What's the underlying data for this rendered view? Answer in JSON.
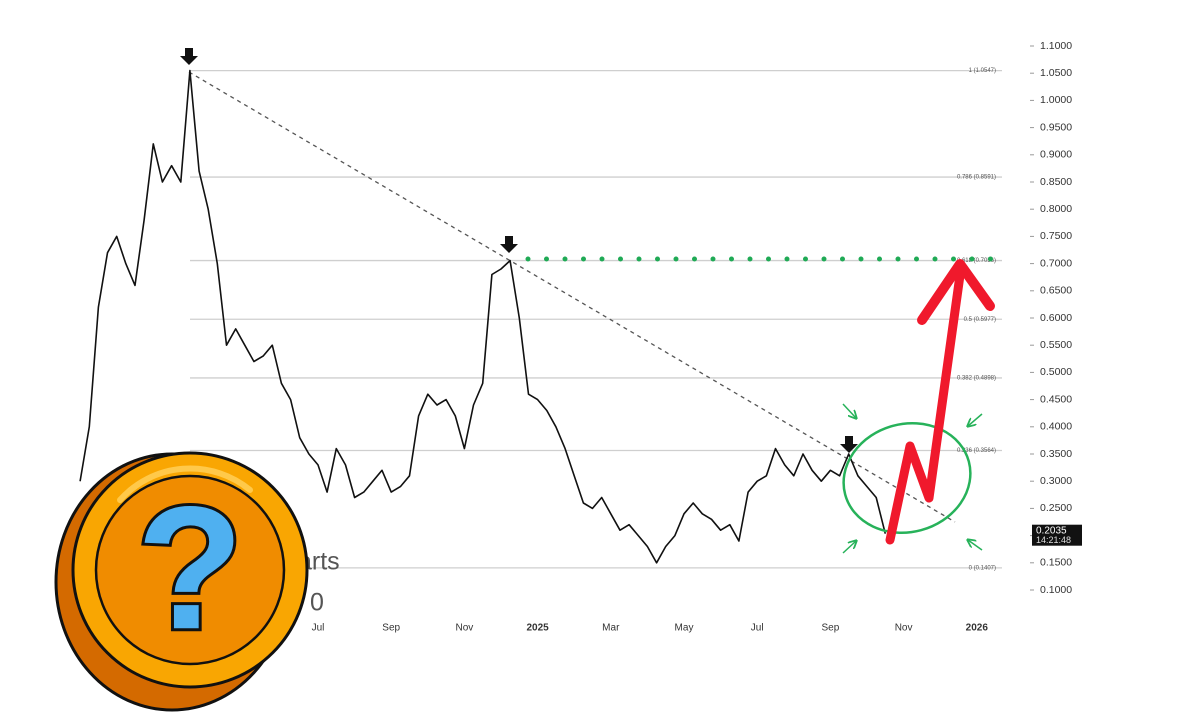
{
  "chart_data": {
    "type": "line",
    "color": "#111111",
    "categories": [
      null,
      null,
      null,
      null,
      null,
      null,
      null,
      null,
      null,
      null,
      null,
      null,
      null,
      null,
      null,
      null,
      null,
      null,
      null,
      null,
      null,
      null,
      null,
      null,
      null,
      null,
      "Jul",
      null,
      null,
      null,
      null,
      null,
      null,
      null,
      "Sep",
      null,
      null,
      null,
      null,
      null,
      null,
      null,
      "Nov",
      null,
      null,
      null,
      null,
      null,
      null,
      null,
      "2025",
      null,
      null,
      null,
      null,
      null,
      null,
      null,
      "Mar",
      null,
      null,
      null,
      null,
      null,
      null,
      null,
      "May",
      null,
      null,
      null,
      null,
      null,
      null,
      null,
      "Jul",
      null,
      null,
      null,
      null,
      null,
      null,
      null,
      "Sep",
      null,
      null,
      null,
      null,
      null,
      null,
      null,
      "Nov",
      null,
      null,
      null,
      null,
      null,
      null,
      null,
      "2026"
    ],
    "values": [
      0.3,
      0.4,
      0.62,
      0.72,
      0.75,
      0.7,
      0.66,
      0.78,
      0.92,
      0.85,
      0.88,
      0.85,
      1.0547,
      0.87,
      0.8,
      0.7,
      0.55,
      0.58,
      0.55,
      0.52,
      0.53,
      0.55,
      0.48,
      0.45,
      0.38,
      0.35,
      0.33,
      0.28,
      0.36,
      0.33,
      0.27,
      0.28,
      0.3,
      0.32,
      0.28,
      0.29,
      0.31,
      0.42,
      0.46,
      0.44,
      0.45,
      0.42,
      0.36,
      0.44,
      0.48,
      0.68,
      0.69,
      0.7056,
      0.6,
      0.46,
      0.45,
      0.43,
      0.4,
      0.36,
      0.31,
      0.26,
      0.25,
      0.27,
      0.24,
      0.21,
      0.22,
      0.2,
      0.18,
      0.15,
      0.18,
      0.2,
      0.24,
      0.26,
      0.24,
      0.23,
      0.21,
      0.22,
      0.19,
      0.28,
      0.3,
      0.31,
      0.36,
      0.33,
      0.31,
      0.35,
      0.32,
      0.3,
      0.32,
      0.31,
      0.35,
      0.31,
      0.29,
      0.27,
      0.2035,
      null,
      null,
      null,
      null,
      null,
      null,
      null,
      null,
      null,
      null
    ],
    "ylim": [
      0.1,
      1.1
    ],
    "yticks": [
      {
        "value": 0.1,
        "label": "0.1000"
      },
      {
        "value": 0.15,
        "label": "0.1500"
      },
      {
        "value": 0.2,
        "label": "0.2000"
      },
      {
        "value": 0.25,
        "label": "0.2500"
      },
      {
        "value": 0.3,
        "label": "0.3000"
      },
      {
        "value": 0.35,
        "label": "0.3500"
      },
      {
        "value": 0.4,
        "label": "0.4000"
      },
      {
        "value": 0.45,
        "label": "0.4500"
      },
      {
        "value": 0.5,
        "label": "0.5000"
      },
      {
        "value": 0.55,
        "label": "0.5500"
      },
      {
        "value": 0.6,
        "label": "0.6000"
      },
      {
        "value": 0.65,
        "label": "0.6500"
      },
      {
        "value": 0.7,
        "label": "0.7000"
      },
      {
        "value": 0.75,
        "label": "0.7500"
      },
      {
        "value": 0.8,
        "label": "0.8000"
      },
      {
        "value": 0.85,
        "label": "0.8500"
      },
      {
        "value": 0.9,
        "label": "0.9000"
      },
      {
        "value": 0.95,
        "label": "0.9500"
      },
      {
        "value": 1.0,
        "label": "1.0000"
      },
      {
        "value": 1.05,
        "label": "1.0500"
      },
      {
        "value": 1.1,
        "label": "1.1000"
      }
    ],
    "grid": false,
    "fib_levels": [
      {
        "value": 1.0547,
        "label": "1 (1.0547)"
      },
      {
        "value": 0.8591,
        "label": "0.786 (0.8591)"
      },
      {
        "value": 0.7056,
        "label": "0.618 (0.7056)"
      },
      {
        "value": 0.5977,
        "label": "0.5 (0.5977)"
      },
      {
        "value": 0.4898,
        "label": "0.382 (0.4898)"
      },
      {
        "value": 0.3564,
        "label": "0.236 (0.3564)"
      },
      {
        "value": 0.1407,
        "label": "0 (0.1407)"
      }
    ],
    "price_tag": 0.2035,
    "countdown": "14:21:48",
    "watermark": "arts",
    "watermark_line2": "0",
    "coin_symbol": "?"
  }
}
